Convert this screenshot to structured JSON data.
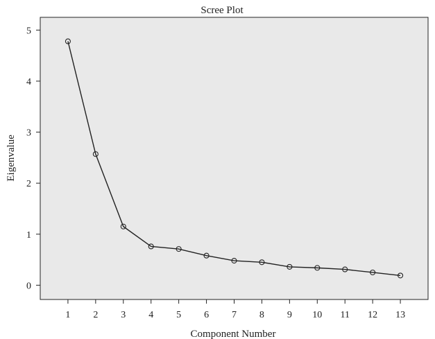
{
  "chart_data": {
    "type": "line",
    "title": "Scree Plot",
    "xlabel": "Component Number",
    "ylabel": "Eigenvalue",
    "x": [
      1,
      2,
      3,
      4,
      5,
      6,
      7,
      8,
      9,
      10,
      11,
      12,
      13
    ],
    "values": [
      4.78,
      2.57,
      1.15,
      0.76,
      0.71,
      0.58,
      0.48,
      0.45,
      0.36,
      0.34,
      0.31,
      0.25,
      0.19
    ],
    "x_ticks": [
      "1",
      "2",
      "3",
      "4",
      "5",
      "6",
      "7",
      "8",
      "9",
      "10",
      "11",
      "12",
      "13"
    ],
    "y_ticks": [
      "0",
      "1",
      "2",
      "3",
      "4",
      "5"
    ],
    "xlim": [
      0,
      14
    ],
    "ylim": [
      -0.28,
      5.25
    ],
    "grid": false,
    "marker": "open-circle",
    "colors": {
      "plot_background": "#e9e9e9",
      "line": "#222222",
      "frame": "#222222"
    }
  }
}
